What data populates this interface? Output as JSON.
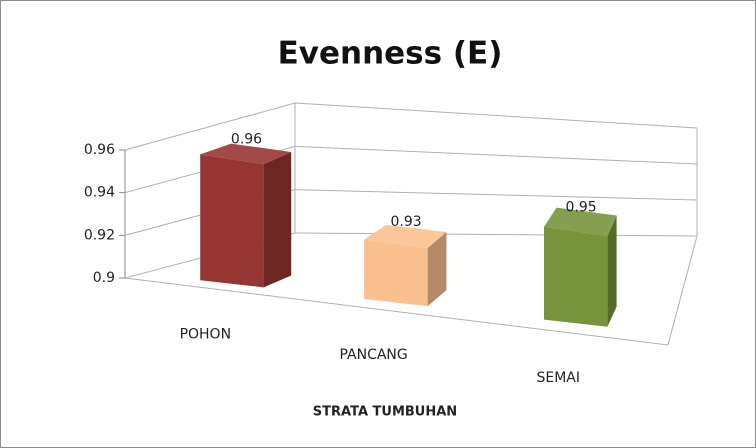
{
  "chart_data": {
    "type": "bar3d",
    "title": "Evenness (E)",
    "x_label": "STRATA TUMBUHAN",
    "categories": [
      "POHON",
      "PANCANG",
      "SEMAI"
    ],
    "values": [
      0.96,
      0.93,
      0.95
    ],
    "colors": [
      "#963634",
      "#fac08f",
      "#77933c"
    ],
    "ylim": [
      0.9,
      0.96
    ],
    "yticks": [
      0.9,
      0.92,
      0.94,
      0.96
    ],
    "grid": true
  }
}
